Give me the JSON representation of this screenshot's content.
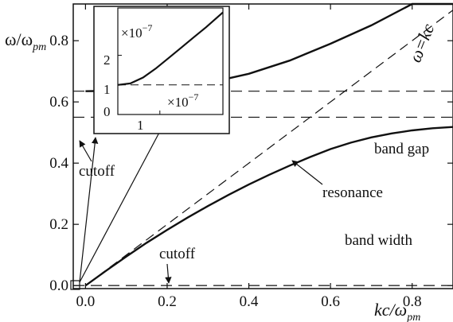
{
  "chart_data": {
    "type": "line",
    "xlabel": {
      "main": "kc/ω",
      "sub": "pm"
    },
    "ylabel": {
      "main": "ω/ω",
      "sub": "pm"
    },
    "xlim": [
      -0.03,
      0.9
    ],
    "ylim": [
      -0.01,
      0.92
    ],
    "x_ticks": [
      0.0,
      0.2,
      0.4,
      0.6,
      0.8
    ],
    "x_tick_labels": [
      "0.0",
      "0.2",
      "0.4",
      "0.6",
      "0.8"
    ],
    "y_ticks": [
      0.0,
      0.2,
      0.4,
      0.6,
      0.8
    ],
    "y_tick_labels": [
      "0.0",
      "0.2",
      "0.4",
      "0.6",
      "0.8"
    ],
    "grid": false,
    "series": [
      {
        "style": "solid",
        "x": [
          0.0,
          0.1,
          0.2,
          0.3,
          0.4,
          0.5,
          0.6,
          0.7,
          0.8,
          0.9
        ],
        "y": [
          0.635,
          0.637,
          0.645,
          0.662,
          0.692,
          0.735,
          0.79,
          0.85,
          0.92,
          0.92
        ]
      },
      {
        "style": "solid",
        "x": [
          0.0,
          0.05,
          0.1,
          0.15,
          0.2,
          0.25,
          0.3,
          0.35,
          0.4,
          0.45,
          0.5,
          0.55,
          0.6,
          0.65,
          0.7,
          0.75,
          0.8,
          0.85,
          0.9
        ],
        "y": [
          0.0,
          0.048,
          0.095,
          0.14,
          0.182,
          0.222,
          0.26,
          0.296,
          0.33,
          0.362,
          0.392,
          0.42,
          0.446,
          0.467,
          0.484,
          0.497,
          0.507,
          0.514,
          0.518
        ]
      },
      {
        "style": "dashed",
        "name": "ω=kc",
        "x": [
          0.0,
          0.9
        ],
        "y": [
          0.0,
          0.9
        ]
      }
    ],
    "hlines": [
      {
        "y": 0.635,
        "style": "dashed"
      },
      {
        "y": 0.55,
        "style": "dashed"
      },
      {
        "y": 0.0,
        "style": "dashed"
      }
    ],
    "annotations": [
      {
        "text": "ω=kc",
        "near": "upper-right",
        "rotated": true
      },
      {
        "text": "band gap",
        "near": "right"
      },
      {
        "text": "resonance",
        "near": "right",
        "arrow_to_y": 0.55
      },
      {
        "text": "band width",
        "near": "lower-right"
      },
      {
        "text": "cutoff",
        "near": "left",
        "arrow_to_y": 0.635
      },
      {
        "text": "cutoff",
        "near": "bottom",
        "arrow_to_y": 0.0
      }
    ],
    "inset": {
      "type": "line",
      "x_tick_labels": [
        "1"
      ],
      "x_multiplier": "×10",
      "x_multiplier_exp": "−7",
      "y_tick_labels": [
        "0",
        "1",
        "2"
      ],
      "y_multiplier": "×10",
      "y_multiplier_exp": "−7",
      "xlim": [
        0,
        2.5
      ],
      "ylim": [
        0,
        3.6
      ],
      "series": [
        {
          "style": "solid",
          "x": [
            0.0,
            0.3,
            0.6,
            0.9,
            1.2,
            1.5,
            1.8,
            2.1,
            2.5
          ],
          "y": [
            1.0,
            1.05,
            1.25,
            1.55,
            1.9,
            2.25,
            2.6,
            2.95,
            3.45
          ]
        }
      ],
      "hlines": [
        {
          "y": 1.0,
          "style": "dashed"
        }
      ]
    }
  }
}
